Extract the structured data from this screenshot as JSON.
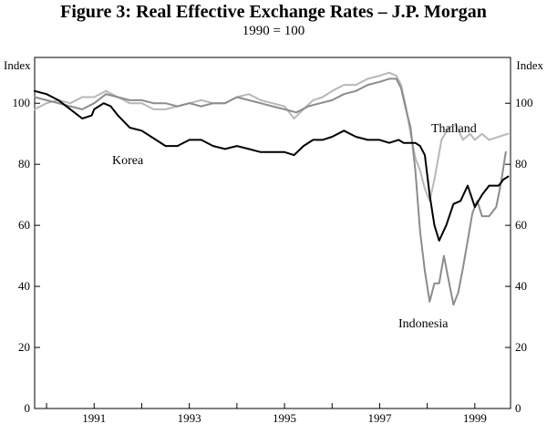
{
  "chart_data": {
    "type": "line",
    "title": "Figure 3: Real Effective Exchange Rates – J.P. Morgan",
    "subtitle": "1990 = 100",
    "ylabel_left": "Index",
    "ylabel_right": "Index",
    "xlabel": "",
    "xlim": [
      1989.75,
      1999.75
    ],
    "ylim": [
      0,
      115
    ],
    "yticks": [
      0,
      20,
      40,
      60,
      80,
      100
    ],
    "ytick_labels": [
      "0",
      "20",
      "40",
      "60",
      "80",
      "100"
    ],
    "xticks": [
      1991,
      1993,
      1995,
      1997,
      1999
    ],
    "xtick_labels": [
      "1991",
      "1993",
      "1995",
      "1997",
      "1999"
    ],
    "grid": false,
    "series": [
      {
        "name": "Korea",
        "color": "#000000",
        "points": [
          [
            1989.75,
            104
          ],
          [
            1990.0,
            103
          ],
          [
            1990.25,
            101
          ],
          [
            1990.5,
            98
          ],
          [
            1990.75,
            95
          ],
          [
            1990.95,
            96
          ],
          [
            1991.0,
            98
          ],
          [
            1991.2,
            100
          ],
          [
            1991.35,
            99
          ],
          [
            1991.5,
            96
          ],
          [
            1991.75,
            92
          ],
          [
            1992.0,
            91
          ],
          [
            1992.2,
            89
          ],
          [
            1992.5,
            86
          ],
          [
            1992.75,
            86
          ],
          [
            1993.0,
            88
          ],
          [
            1993.25,
            88
          ],
          [
            1993.5,
            86
          ],
          [
            1993.75,
            85
          ],
          [
            1994.0,
            86
          ],
          [
            1994.25,
            85
          ],
          [
            1994.5,
            84
          ],
          [
            1994.75,
            84
          ],
          [
            1995.0,
            84
          ],
          [
            1995.2,
            83
          ],
          [
            1995.4,
            86
          ],
          [
            1995.6,
            88
          ],
          [
            1995.8,
            88
          ],
          [
            1996.0,
            89
          ],
          [
            1996.25,
            91
          ],
          [
            1996.5,
            89
          ],
          [
            1996.75,
            88
          ],
          [
            1997.0,
            88
          ],
          [
            1997.2,
            87
          ],
          [
            1997.4,
            88
          ],
          [
            1997.5,
            87
          ],
          [
            1997.75,
            87
          ],
          [
            1997.85,
            86
          ],
          [
            1997.95,
            83
          ],
          [
            1998.05,
            70
          ],
          [
            1998.15,
            60
          ],
          [
            1998.25,
            55
          ],
          [
            1998.4,
            60
          ],
          [
            1998.55,
            67
          ],
          [
            1998.7,
            68
          ],
          [
            1998.85,
            73
          ],
          [
            1999.0,
            66
          ],
          [
            1999.15,
            70
          ],
          [
            1999.3,
            73
          ],
          [
            1999.5,
            73
          ],
          [
            1999.6,
            75
          ],
          [
            1999.7,
            76
          ]
        ]
      },
      {
        "name": "Thailand",
        "color": "#b8b8b8",
        "points": [
          [
            1989.75,
            98
          ],
          [
            1990.0,
            100
          ],
          [
            1990.25,
            101
          ],
          [
            1990.5,
            100
          ],
          [
            1990.75,
            102
          ],
          [
            1991.0,
            102
          ],
          [
            1991.25,
            104
          ],
          [
            1991.5,
            102
          ],
          [
            1991.75,
            100
          ],
          [
            1992.0,
            100
          ],
          [
            1992.25,
            98
          ],
          [
            1992.5,
            98
          ],
          [
            1992.75,
            99
          ],
          [
            1993.0,
            100
          ],
          [
            1993.25,
            101
          ],
          [
            1993.5,
            100
          ],
          [
            1993.75,
            100
          ],
          [
            1994.0,
            102
          ],
          [
            1994.25,
            103
          ],
          [
            1994.5,
            101
          ],
          [
            1994.75,
            100
          ],
          [
            1995.0,
            99
          ],
          [
            1995.2,
            95
          ],
          [
            1995.4,
            98
          ],
          [
            1995.6,
            101
          ],
          [
            1995.8,
            102
          ],
          [
            1996.0,
            104
          ],
          [
            1996.25,
            106
          ],
          [
            1996.5,
            106
          ],
          [
            1996.75,
            108
          ],
          [
            1997.0,
            109
          ],
          [
            1997.2,
            110
          ],
          [
            1997.35,
            109
          ],
          [
            1997.45,
            106
          ],
          [
            1997.55,
            99
          ],
          [
            1997.65,
            90
          ],
          [
            1997.75,
            82
          ],
          [
            1997.85,
            78
          ],
          [
            1997.95,
            72
          ],
          [
            1998.05,
            68
          ],
          [
            1998.15,
            75
          ],
          [
            1998.3,
            88
          ],
          [
            1998.45,
            92
          ],
          [
            1998.6,
            93
          ],
          [
            1998.75,
            88
          ],
          [
            1998.9,
            90
          ],
          [
            1999.0,
            88
          ],
          [
            1999.15,
            90
          ],
          [
            1999.3,
            88
          ],
          [
            1999.5,
            89
          ],
          [
            1999.7,
            90
          ]
        ]
      },
      {
        "name": "Indonesia",
        "color": "#8c8c8c",
        "points": [
          [
            1989.75,
            102
          ],
          [
            1990.0,
            101
          ],
          [
            1990.25,
            100
          ],
          [
            1990.5,
            99
          ],
          [
            1990.75,
            98
          ],
          [
            1991.0,
            100
          ],
          [
            1991.25,
            103
          ],
          [
            1991.5,
            102
          ],
          [
            1991.75,
            101
          ],
          [
            1992.0,
            101
          ],
          [
            1992.25,
            100
          ],
          [
            1992.5,
            100
          ],
          [
            1992.75,
            99
          ],
          [
            1993.0,
            100
          ],
          [
            1993.25,
            99
          ],
          [
            1993.5,
            100
          ],
          [
            1993.75,
            100
          ],
          [
            1994.0,
            102
          ],
          [
            1994.25,
            101
          ],
          [
            1994.5,
            100
          ],
          [
            1994.75,
            99
          ],
          [
            1995.0,
            98
          ],
          [
            1995.25,
            97
          ],
          [
            1995.5,
            99
          ],
          [
            1995.75,
            100
          ],
          [
            1996.0,
            101
          ],
          [
            1996.25,
            103
          ],
          [
            1996.5,
            104
          ],
          [
            1996.75,
            106
          ],
          [
            1997.0,
            107
          ],
          [
            1997.2,
            108
          ],
          [
            1997.35,
            108
          ],
          [
            1997.45,
            105
          ],
          [
            1997.55,
            98
          ],
          [
            1997.65,
            92
          ],
          [
            1997.75,
            78
          ],
          [
            1997.85,
            58
          ],
          [
            1997.95,
            45
          ],
          [
            1998.05,
            35
          ],
          [
            1998.15,
            41
          ],
          [
            1998.25,
            41
          ],
          [
            1998.35,
            50
          ],
          [
            1998.45,
            42
          ],
          [
            1998.55,
            34
          ],
          [
            1998.65,
            38
          ],
          [
            1998.75,
            46
          ],
          [
            1998.85,
            55
          ],
          [
            1998.95,
            64
          ],
          [
            1999.05,
            68
          ],
          [
            1999.15,
            63
          ],
          [
            1999.3,
            63
          ],
          [
            1999.45,
            66
          ],
          [
            1999.55,
            74
          ],
          [
            1999.65,
            84
          ]
        ]
      }
    ],
    "annotations": [
      {
        "text": "Korea",
        "series": "Korea"
      },
      {
        "text": "Thailand",
        "series": "Thailand"
      },
      {
        "text": "Indonesia",
        "series": "Indonesia"
      }
    ]
  }
}
